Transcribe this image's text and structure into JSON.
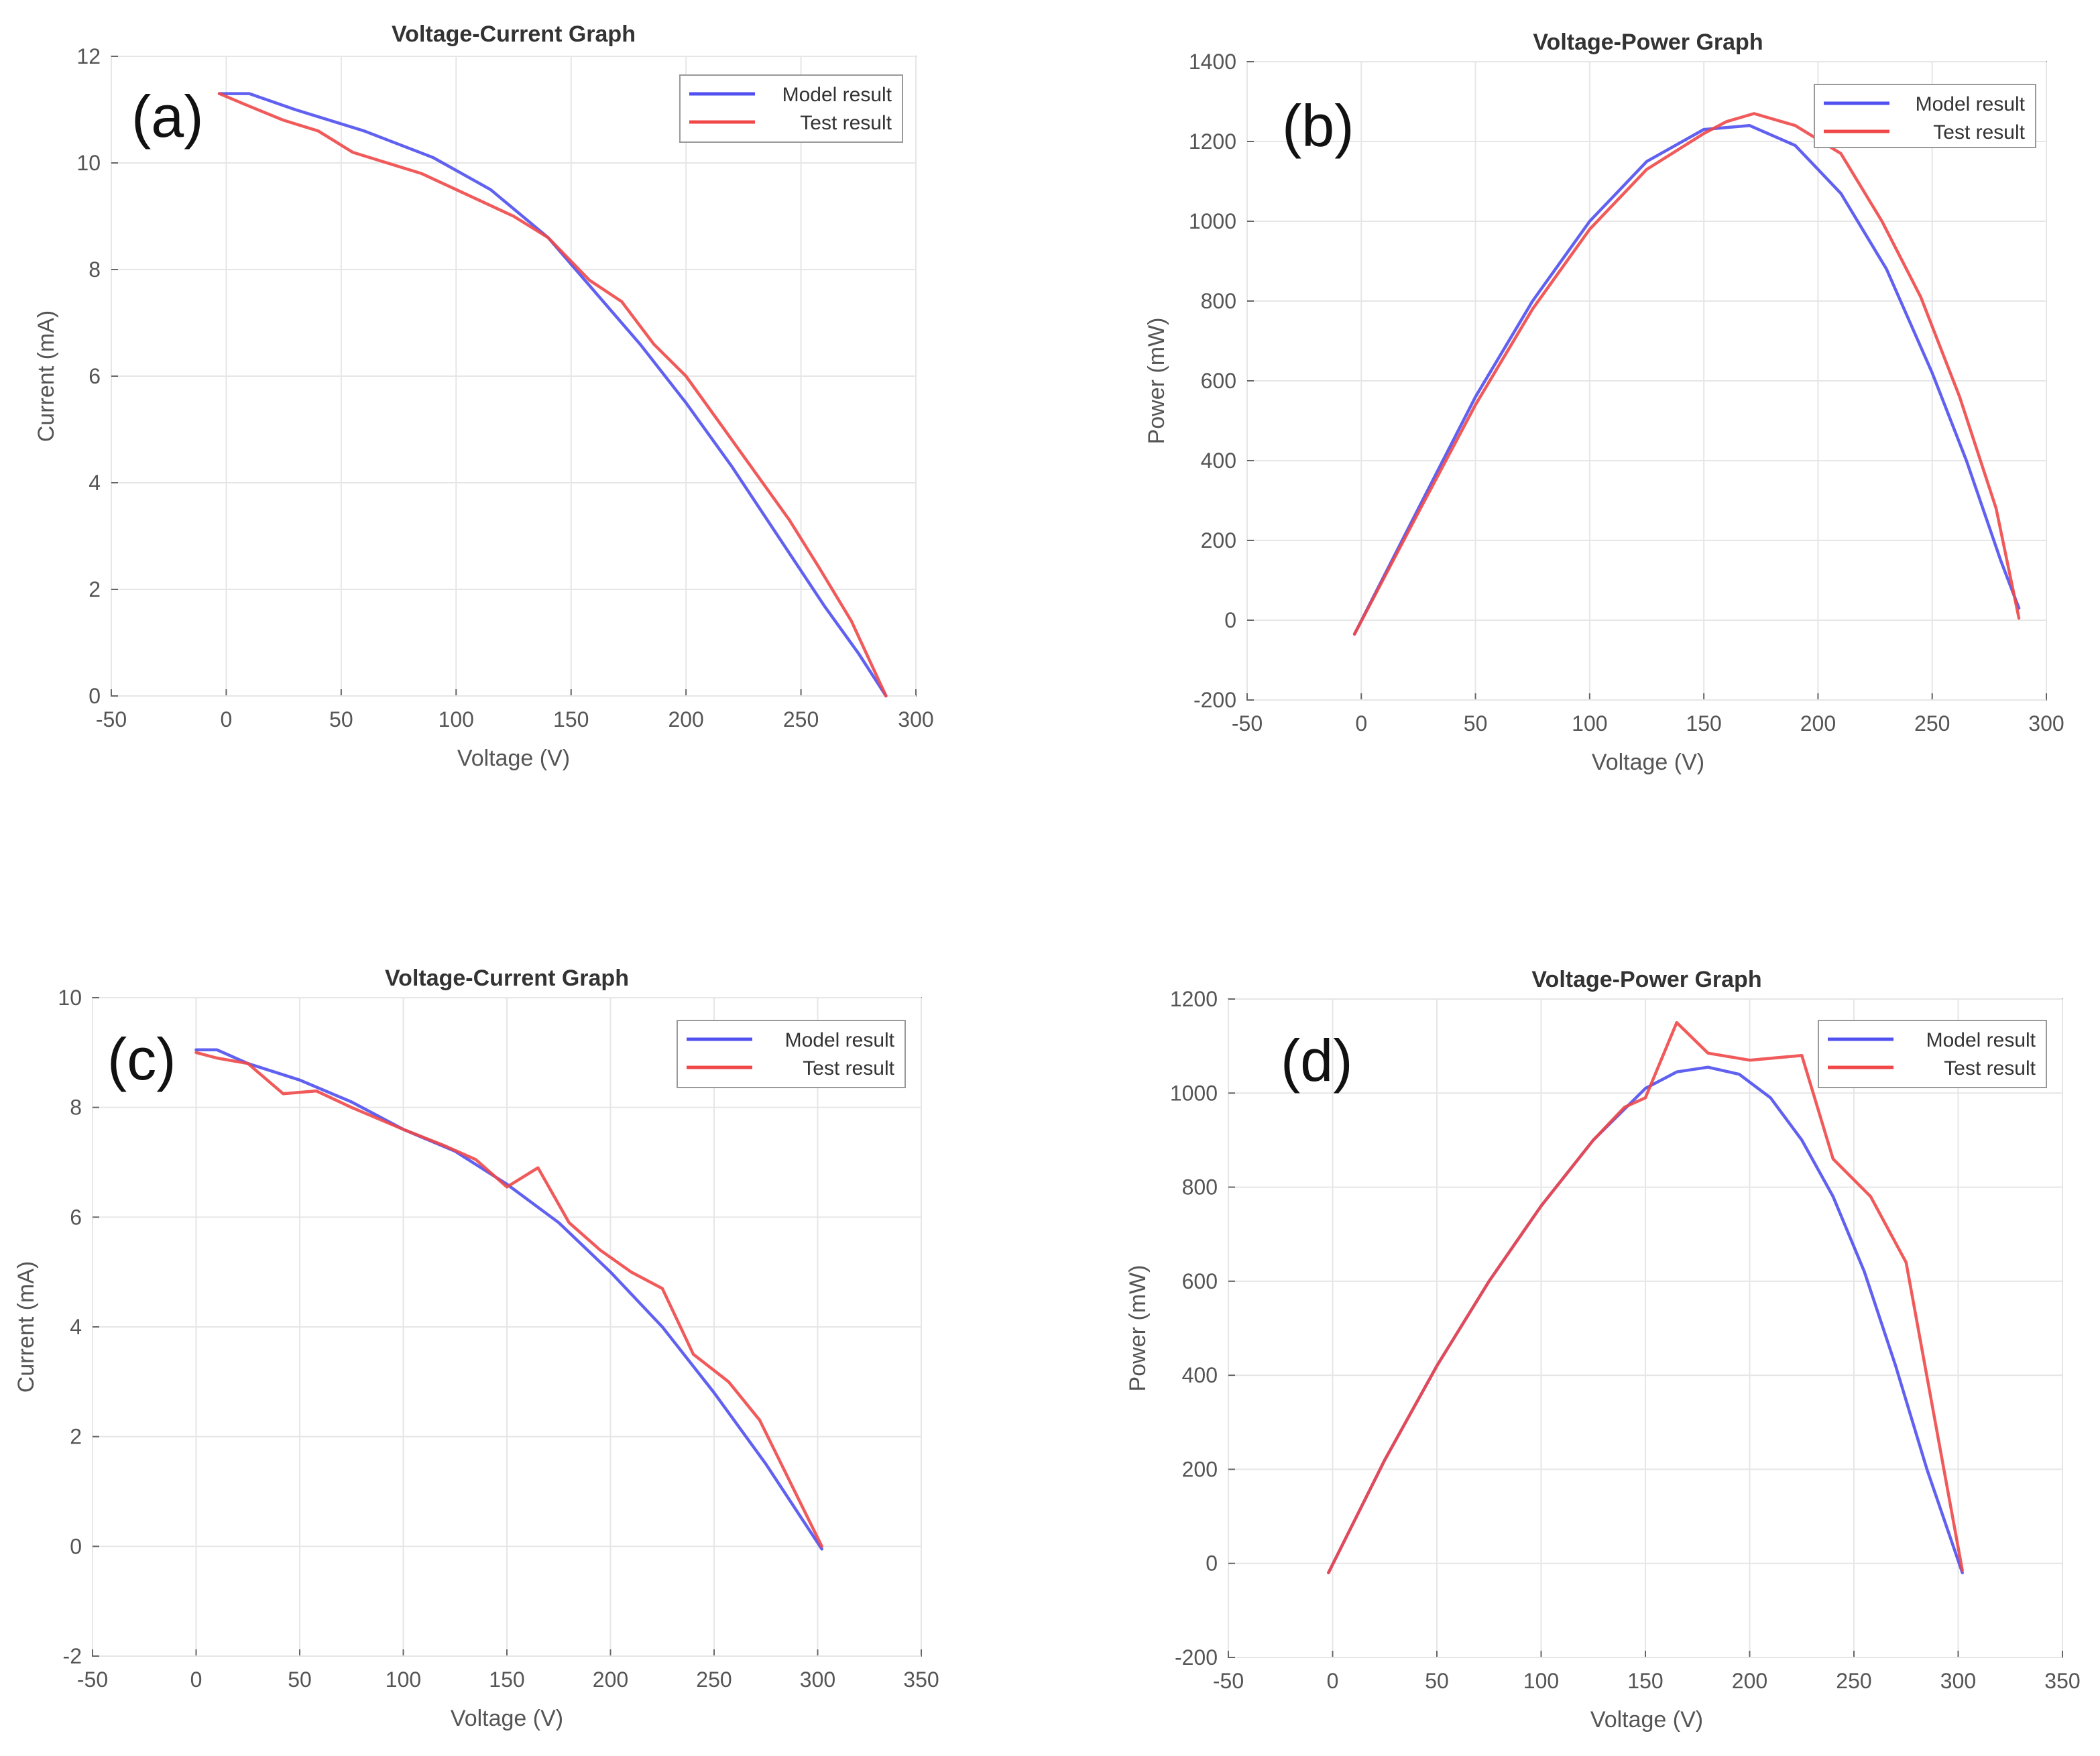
{
  "colors": {
    "model": "#5050f0",
    "test": "#f04848",
    "grid": "#e6e6e6",
    "axis": "#666666",
    "text": "#555555",
    "title": "#333333",
    "panel_label": "#111111"
  },
  "chart_data": [
    {
      "type": "line",
      "panel_label": "(a)",
      "title": "Voltage-Current Graph",
      "xlabel": "Voltage (V)",
      "ylabel": "Current (mA)",
      "xlim": [
        -50,
        300
      ],
      "ylim": [
        0,
        12
      ],
      "xticks": [
        -50,
        0,
        50,
        100,
        150,
        200,
        250,
        300
      ],
      "yticks": [
        0,
        2,
        4,
        6,
        8,
        10,
        12
      ],
      "xtick_labels": [
        "-50",
        "0",
        "50",
        "100",
        "150",
        "200",
        "250",
        "300"
      ],
      "ytick_labels": [
        "0",
        "2",
        "4",
        "6",
        "8",
        "10",
        "12"
      ],
      "legend_position": "top-right",
      "series": [
        {
          "name": "Model result",
          "color_key": "model",
          "x": [
            -3,
            10,
            30,
            60,
            90,
            115,
            140,
            160,
            180,
            200,
            220,
            240,
            260,
            275,
            287
          ],
          "y": [
            11.3,
            11.3,
            11.0,
            10.6,
            10.1,
            9.5,
            8.6,
            7.6,
            6.6,
            5.5,
            4.3,
            3.0,
            1.7,
            0.8,
            0.0
          ]
        },
        {
          "name": "Test result",
          "color_key": "test",
          "x": [
            -3,
            8,
            25,
            40,
            55,
            70,
            85,
            105,
            125,
            140,
            158,
            172,
            186,
            200,
            215,
            230,
            245,
            258,
            272,
            287
          ],
          "y": [
            11.3,
            11.1,
            10.8,
            10.6,
            10.2,
            10.0,
            9.8,
            9.4,
            9.0,
            8.6,
            7.8,
            7.4,
            6.6,
            6.0,
            5.1,
            4.2,
            3.3,
            2.4,
            1.4,
            0.0
          ]
        }
      ]
    },
    {
      "type": "line",
      "panel_label": "(b)",
      "title": "Voltage-Power Graph",
      "xlabel": "Voltage (V)",
      "ylabel": "Power (mW)",
      "xlim": [
        -50,
        300
      ],
      "ylim": [
        -200,
        1400
      ],
      "xticks": [
        -50,
        0,
        50,
        100,
        150,
        200,
        250,
        300
      ],
      "yticks": [
        -200,
        0,
        200,
        400,
        600,
        800,
        1000,
        1200,
        1400
      ],
      "xtick_labels": [
        "-50",
        "0",
        "50",
        "100",
        "150",
        "200",
        "250",
        "300"
      ],
      "ytick_labels": [
        "-200",
        "0",
        "200",
        "400",
        "600",
        "800",
        "1000",
        "1200",
        "1400"
      ],
      "legend_position": "top-right",
      "series": [
        {
          "name": "Model result",
          "color_key": "model",
          "x": [
            -3,
            25,
            50,
            75,
            100,
            125,
            150,
            170,
            190,
            210,
            230,
            250,
            265,
            280,
            288
          ],
          "y": [
            -35,
            280,
            560,
            800,
            1000,
            1150,
            1230,
            1240,
            1190,
            1070,
            880,
            620,
            400,
            150,
            30
          ]
        },
        {
          "name": "Test result",
          "color_key": "test",
          "x": [
            -3,
            25,
            50,
            75,
            100,
            125,
            150,
            160,
            172,
            190,
            210,
            228,
            245,
            262,
            278,
            288
          ],
          "y": [
            -35,
            270,
            540,
            780,
            980,
            1130,
            1220,
            1250,
            1270,
            1240,
            1170,
            1000,
            810,
            560,
            280,
            5
          ]
        }
      ]
    },
    {
      "type": "line",
      "panel_label": "(c)",
      "title": "Voltage-Current Graph",
      "xlabel": "Voltage (V)",
      "ylabel": "Current (mA)",
      "xlim": [
        -50,
        350
      ],
      "ylim": [
        -2,
        10
      ],
      "xticks": [
        -50,
        0,
        50,
        100,
        150,
        200,
        250,
        300,
        350
      ],
      "yticks": [
        -2,
        0,
        2,
        4,
        6,
        8,
        10
      ],
      "xtick_labels": [
        "-50",
        "0",
        "50",
        "100",
        "150",
        "200",
        "250",
        "300",
        "350"
      ],
      "ytick_labels": [
        "-2",
        "0",
        "2",
        "4",
        "6",
        "8",
        "10"
      ],
      "legend_position": "top-right",
      "series": [
        {
          "name": "Model result",
          "color_key": "model",
          "x": [
            0,
            10,
            25,
            50,
            75,
            100,
            125,
            150,
            175,
            200,
            225,
            250,
            275,
            302
          ],
          "y": [
            9.05,
            9.05,
            8.8,
            8.5,
            8.1,
            7.6,
            7.2,
            6.6,
            5.9,
            5.0,
            4.0,
            2.8,
            1.5,
            -0.05
          ]
        },
        {
          "name": "Test result",
          "color_key": "test",
          "x": [
            0,
            10,
            25,
            42,
            58,
            75,
            100,
            120,
            135,
            150,
            165,
            180,
            195,
            210,
            225,
            240,
            257,
            272,
            302
          ],
          "y": [
            9.0,
            8.9,
            8.8,
            8.25,
            8.3,
            8.0,
            7.6,
            7.3,
            7.05,
            6.55,
            6.9,
            5.9,
            5.4,
            5.0,
            4.7,
            3.5,
            3.0,
            2.3,
            0.0
          ]
        }
      ]
    },
    {
      "type": "line",
      "panel_label": "(d)",
      "title": "Voltage-Power Graph",
      "xlabel": "Voltage (V)",
      "ylabel": "Power (mW)",
      "xlim": [
        -50,
        350
      ],
      "ylim": [
        -200,
        1200
      ],
      "xticks": [
        -50,
        0,
        50,
        100,
        150,
        200,
        250,
        300,
        350
      ],
      "yticks": [
        -200,
        0,
        200,
        400,
        600,
        800,
        1000,
        1200
      ],
      "xtick_labels": [
        "-50",
        "0",
        "50",
        "100",
        "150",
        "200",
        "250",
        "300",
        "350"
      ],
      "ytick_labels": [
        "-200",
        "0",
        "200",
        "400",
        "600",
        "800",
        "1000",
        "1200"
      ],
      "legend_position": "top-right",
      "series": [
        {
          "name": "Model result",
          "color_key": "model",
          "x": [
            -2,
            25,
            50,
            75,
            100,
            125,
            150,
            165,
            180,
            195,
            210,
            225,
            240,
            255,
            270,
            285,
            302
          ],
          "y": [
            -20,
            220,
            420,
            600,
            760,
            900,
            1010,
            1045,
            1055,
            1040,
            990,
            900,
            780,
            620,
            420,
            200,
            -20
          ]
        },
        {
          "name": "Test result",
          "color_key": "test",
          "x": [
            -2,
            25,
            50,
            75,
            100,
            125,
            140,
            150,
            165,
            180,
            200,
            225,
            240,
            258,
            275,
            302
          ],
          "y": [
            -20,
            220,
            420,
            600,
            760,
            900,
            970,
            990,
            1150,
            1085,
            1070,
            1080,
            860,
            780,
            640,
            -15
          ]
        }
      ]
    }
  ]
}
